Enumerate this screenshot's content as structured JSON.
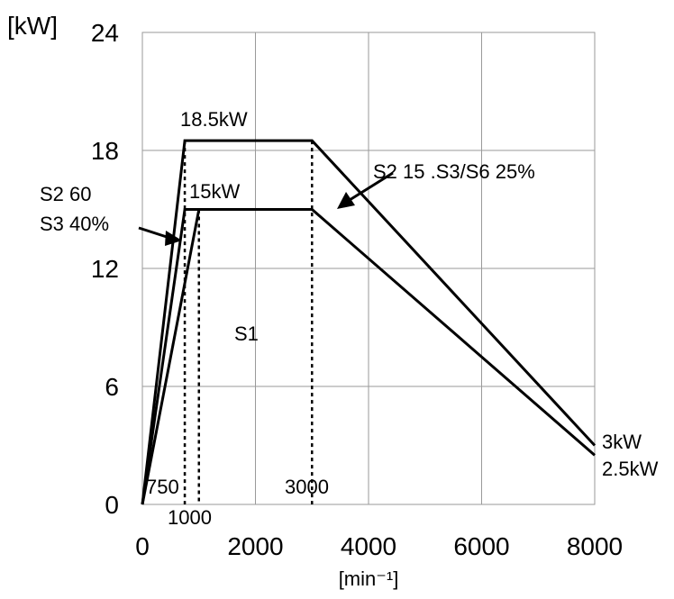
{
  "chart_data": {
    "type": "line",
    "ylabel": "[kW]",
    "xlabel": "[min⁻¹]",
    "xlim": [
      0,
      8000
    ],
    "ylim": [
      0,
      24
    ],
    "x_ticks": [
      "0",
      "2000",
      "4000",
      "6000",
      "8000"
    ],
    "y_ticks": [
      "0",
      "6",
      "12",
      "18",
      "24"
    ],
    "grid": true,
    "series": [
      {
        "points": [
          [
            0,
            0
          ],
          [
            750,
            18.5
          ],
          [
            3000,
            18.5
          ],
          [
            8000,
            3
          ]
        ]
      },
      {
        "points": [
          [
            0,
            0
          ],
          [
            750,
            15
          ],
          [
            3000,
            15
          ],
          [
            8000,
            2.5
          ]
        ]
      },
      {
        "points": [
          [
            0,
            0
          ],
          [
            1000,
            15
          ]
        ]
      }
    ],
    "annotations": {
      "label_185": "18.5kW",
      "label_15": "15kW",
      "label_s1": "S1",
      "label_s2_60": "S2 60",
      "label_s3_40": "S3 40%",
      "label_s2_15": "S2 15 .S3/S6 25%",
      "label_3kw": "3kW",
      "label_25kw": "2.5kW",
      "label_750": "750",
      "label_1000": "1000",
      "label_3000": "3000"
    }
  }
}
